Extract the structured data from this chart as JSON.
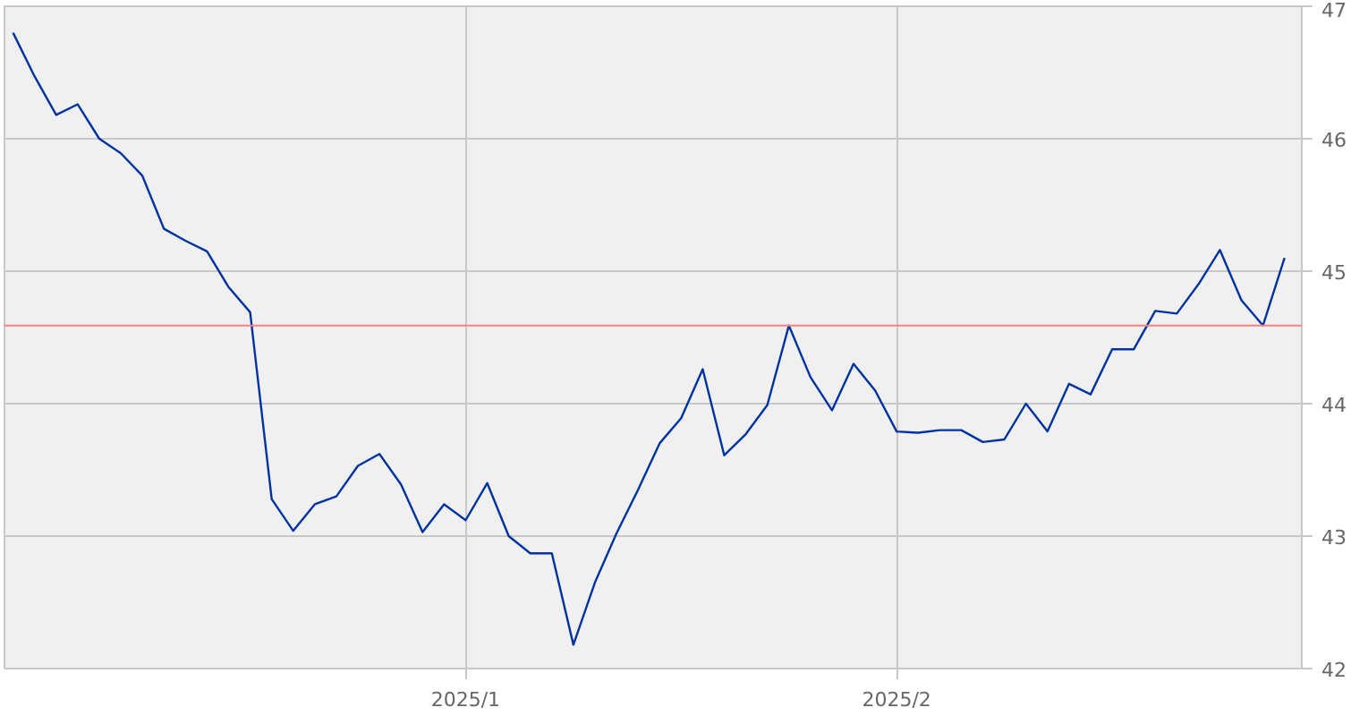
{
  "chart_data": {
    "type": "line",
    "categories": [
      null,
      null,
      null,
      null,
      null,
      null,
      null,
      null,
      null,
      null,
      null,
      null,
      null,
      null,
      null,
      null,
      null,
      null,
      null,
      null,
      null,
      "2025/1",
      null,
      null,
      null,
      null,
      null,
      null,
      null,
      null,
      null,
      null,
      null,
      null,
      null,
      null,
      null,
      null,
      null,
      null,
      null,
      "2025/2",
      null,
      null,
      null,
      null,
      null,
      null,
      null,
      null,
      null,
      null,
      null,
      null,
      null,
      null,
      null,
      null,
      null,
      null
    ],
    "series": [
      {
        "color": "#0033a0",
        "values": [
          46.8,
          46.47,
          46.18,
          46.26,
          46.0,
          45.89,
          45.72,
          45.32,
          45.23,
          45.15,
          44.88,
          44.69,
          43.28,
          43.04,
          43.24,
          43.3,
          43.53,
          43.62,
          43.39,
          43.03,
          43.24,
          43.12,
          43.4,
          43.0,
          42.87,
          42.87,
          42.18,
          42.65,
          43.02,
          43.35,
          43.7,
          43.89,
          44.26,
          43.61,
          43.77,
          43.99,
          44.59,
          44.2,
          43.95,
          44.3,
          44.1,
          43.79,
          43.78,
          43.8,
          43.8,
          43.71,
          43.73,
          44.0,
          43.79,
          44.15,
          44.07,
          44.41,
          44.41,
          44.7,
          44.68,
          44.9,
          45.16,
          44.78,
          44.59,
          45.1
        ]
      }
    ],
    "ylim": [
      42,
      47
    ],
    "yticks": [
      42,
      43,
      44,
      45,
      46,
      47
    ],
    "ref_lines": [
      {
        "axis": "y",
        "value": 44.59,
        "color": "#ff7f7f"
      }
    ],
    "grid": true,
    "marker": "none",
    "line_style": "solid"
  }
}
